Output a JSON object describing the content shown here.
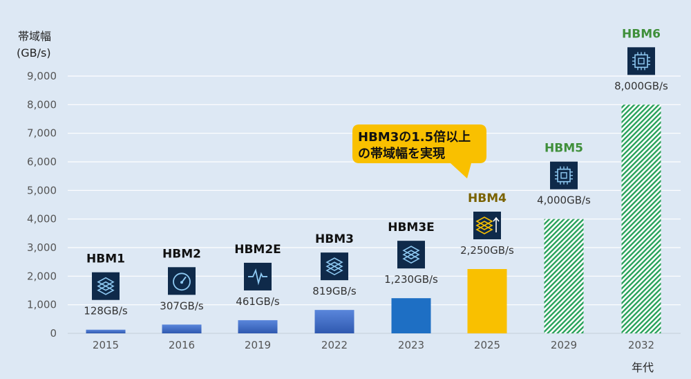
{
  "chart_data": {
    "type": "bar",
    "ylabel_line1": "帯域幅",
    "ylabel_line2": "(GB/s)",
    "xlabel": "年代",
    "ylim": [
      0,
      9000
    ],
    "yticks": [
      0,
      1000,
      2000,
      3000,
      4000,
      5000,
      6000,
      7000,
      8000,
      9000
    ],
    "ytick_labels": [
      "0",
      "1,000",
      "2,000",
      "3,000",
      "4,000",
      "5,000",
      "6,000",
      "7,000",
      "8,000",
      "9,000"
    ],
    "grid": true,
    "categories": [
      "2015",
      "2016",
      "2019",
      "2022",
      "2023",
      "2025",
      "2029",
      "2032"
    ],
    "values": [
      128,
      307,
      461,
      819,
      1230,
      2250,
      4000,
      8000
    ],
    "value_labels": [
      "128GB/s",
      "307GB/s",
      "461GB/s",
      "819GB/s",
      "1,230GB/s",
      "2,250GB/s",
      "4,000GB/s",
      "8,000GB/s"
    ],
    "generations": [
      "HBM1",
      "HBM2",
      "HBM2E",
      "HBM3",
      "HBM3E",
      "HBM4",
      "HBM5",
      "HBM6"
    ],
    "icons": [
      "layers-icon",
      "gauge-icon",
      "waveform-icon",
      "layers-icon",
      "layers-icon",
      "layers-up-icon",
      "chip-icon",
      "chip-icon"
    ],
    "styles": [
      "gradient",
      "gradient",
      "gradient",
      "gradient",
      "solid",
      "solid",
      "hatched",
      "hatched"
    ],
    "bar_colors": [
      "#4a72c9",
      "#4a72c9",
      "#4a72c9",
      "#4a72c9",
      "#1e6fc4",
      "#f9c000",
      "#27a15a",
      "#27a15a"
    ],
    "gen_colors": [
      "#111111",
      "#111111",
      "#111111",
      "#111111",
      "#111111",
      "#7a6200",
      "#3f8f3a",
      "#3f8f3a"
    ],
    "annotation": {
      "line1": "HBM3の1.5倍以上",
      "line2": "の帯域幅を実現",
      "color": "#f9c000"
    }
  }
}
